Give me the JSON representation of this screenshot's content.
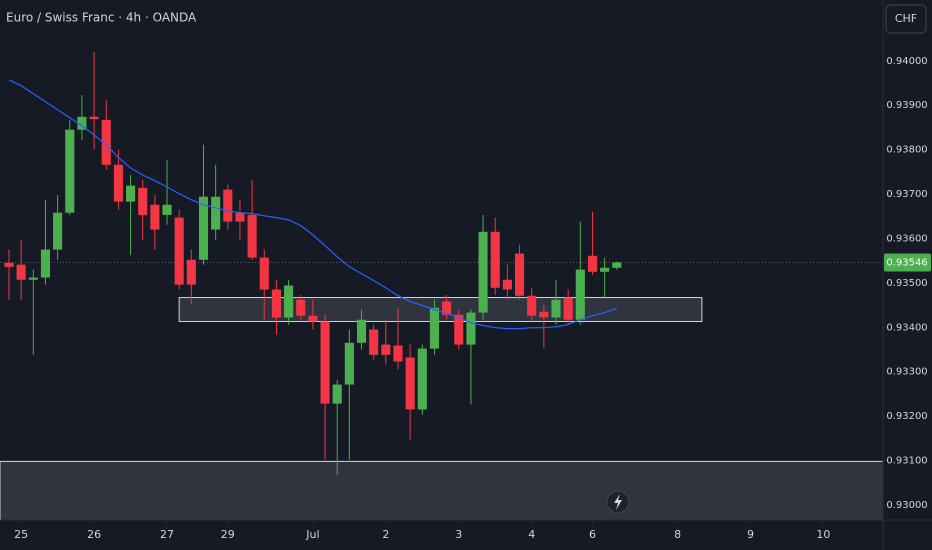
{
  "chart_data": {
    "type": "candlestick",
    "title": "Euro / Swiss Franc · 4h · OANDA",
    "currency_button": "CHF",
    "x": [
      0,
      1,
      2,
      3,
      4,
      5,
      6,
      7,
      8,
      9,
      10,
      11,
      12,
      13,
      14,
      15,
      16,
      17,
      18,
      19,
      20,
      21,
      22,
      23,
      24,
      25,
      26,
      27,
      28,
      29,
      30,
      31,
      32,
      33,
      34,
      35,
      36,
      37,
      38,
      39,
      40,
      41,
      42,
      43,
      44,
      45,
      46,
      47,
      48,
      49,
      50
    ],
    "open": [
      0.93545,
      0.93541,
      0.93507,
      0.93512,
      0.93575,
      0.93658,
      0.93845,
      0.93874,
      0.93867,
      0.93766,
      0.93683,
      0.93714,
      0.93676,
      0.93653,
      0.93647,
      0.93552,
      0.93552,
      0.9362,
      0.9371,
      0.93658,
      0.93653,
      0.93557,
      0.93485,
      0.93422,
      0.93462,
      0.93426,
      0.93413,
      0.93228,
      0.93271,
      0.93365,
      0.93395,
      0.93361,
      0.93359,
      0.93332,
      0.93215,
      0.93352,
      0.93458,
      0.93428,
      0.93361,
      0.93433,
      0.93615,
      0.93507,
      0.93566,
      0.93471,
      0.93435,
      0.93422,
      0.93467,
      0.93417,
      0.93561,
      0.93525,
      0.93534
    ],
    "high": [
      0.93575,
      0.93597,
      0.9353,
      0.93687,
      0.93698,
      0.93867,
      0.93923,
      0.9402,
      0.93912,
      0.938,
      0.93743,
      0.93732,
      0.93698,
      0.93777,
      0.93665,
      0.93575,
      0.93811,
      0.93766,
      0.93721,
      0.93687,
      0.93732,
      0.93575,
      0.93507,
      0.93507,
      0.93473,
      0.93462,
      0.93428,
      0.93282,
      0.93395,
      0.9344,
      0.93406,
      0.93417,
      0.93444,
      0.93361,
      0.93361,
      0.93462,
      0.93473,
      0.9344,
      0.9344,
      0.93653,
      0.93647,
      0.93541,
      0.93586,
      0.93489,
      0.93451,
      0.93507,
      0.93485,
      0.93638,
      0.9366,
      0.93557,
      0.93548
    ],
    "low": [
      0.93462,
      0.93462,
      0.93338,
      0.93496,
      0.93552,
      0.93653,
      0.93822,
      0.938,
      0.93755,
      0.93665,
      0.93563,
      0.93597,
      0.93575,
      0.93631,
      0.93485,
      0.93451,
      0.93541,
      0.93597,
      0.9362,
      0.93597,
      0.93552,
      0.93417,
      0.93383,
      0.93406,
      0.93417,
      0.93395,
      0.93102,
      0.93068,
      0.93102,
      0.9335,
      0.93327,
      0.93316,
      0.93305,
      0.93147,
      0.93203,
      0.93338,
      0.93417,
      0.9335,
      0.93226,
      0.93417,
      0.93473,
      0.93462,
      0.93462,
      0.93413,
      0.93354,
      0.93406,
      0.93406,
      0.93406,
      0.93518,
      0.93467,
      0.9353
    ],
    "close": [
      0.93536,
      0.93507,
      0.93512,
      0.93575,
      0.93658,
      0.93845,
      0.93874,
      0.93869,
      0.93766,
      0.93683,
      0.93719,
      0.93653,
      0.9362,
      0.93676,
      0.93496,
      0.93496,
      0.93694,
      0.93694,
      0.93638,
      0.93638,
      0.93557,
      0.93485,
      0.93422,
      0.93494,
      0.93426,
      0.93413,
      0.93228,
      0.93271,
      0.93365,
      0.93417,
      0.93338,
      0.93338,
      0.93323,
      0.93215,
      0.93352,
      0.93444,
      0.93428,
      0.93361,
      0.93433,
      0.93615,
      0.93489,
      0.93485,
      0.93471,
      0.93426,
      0.93422,
      0.93462,
      0.93417,
      0.9353,
      0.93525,
      0.93534,
      0.93546
    ],
    "ma": {
      "color": "#2962ff",
      "values": [
        0.93957,
        0.93944,
        0.93926,
        0.93908,
        0.9389,
        0.93872,
        0.93854,
        0.93833,
        0.93811,
        0.93782,
        0.93759,
        0.93743,
        0.9373,
        0.93716,
        0.93701,
        0.93687,
        0.93676,
        0.93669,
        0.93662,
        0.93658,
        0.93656,
        0.93651,
        0.93647,
        0.93642,
        0.93629,
        0.93608,
        0.93584,
        0.93559,
        0.93536,
        0.93521,
        0.93505,
        0.93489,
        0.93471,
        0.93458,
        0.93449,
        0.9344,
        0.93431,
        0.93422,
        0.9341,
        0.93404,
        0.93399,
        0.93397,
        0.93397,
        0.93399,
        0.93399,
        0.93401,
        0.93406,
        0.93417,
        0.93426,
        0.93433,
        0.93442
      ]
    },
    "up_color": "#4caf50",
    "down_color": "#f23645",
    "zones": [
      {
        "x": [
          14,
          57
        ],
        "y": [
          0.93413,
          0.93467
        ]
      },
      {
        "x": [
          -0.74,
          71.9
        ],
        "y": [
          0.92966,
          0.93098
        ]
      }
    ],
    "last_price": {
      "value": 0.93546,
      "label": "0.93546"
    },
    "xlim": [
      -0.74,
      71.9
    ],
    "xticks": [
      {
        "value": 1,
        "label": "25"
      },
      {
        "value": 7,
        "label": "26"
      },
      {
        "value": 13,
        "label": "27"
      },
      {
        "value": 18,
        "label": "29"
      },
      {
        "value": 25,
        "label": "Jul"
      },
      {
        "value": 31,
        "label": "2"
      },
      {
        "value": 37,
        "label": "3"
      },
      {
        "value": 43,
        "label": "4"
      },
      {
        "value": 48,
        "label": "6"
      },
      {
        "value": 55,
        "label": "8"
      },
      {
        "value": 61,
        "label": "9"
      },
      {
        "value": 67,
        "label": "10"
      }
    ],
    "ylim": [
      0.92966,
      0.94137
    ],
    "yticks": [
      {
        "value": 0.93,
        "label": "0.93000"
      },
      {
        "value": 0.931,
        "label": "0.93100"
      },
      {
        "value": 0.932,
        "label": "0.93200"
      },
      {
        "value": 0.933,
        "label": "0.93300"
      },
      {
        "value": 0.934,
        "label": "0.93400"
      },
      {
        "value": 0.935,
        "label": "0.93500"
      },
      {
        "value": 0.936,
        "label": "0.93600"
      },
      {
        "value": 0.937,
        "label": "0.93700"
      },
      {
        "value": 0.938,
        "label": "0.93800"
      },
      {
        "value": 0.939,
        "label": "0.93900"
      },
      {
        "value": 0.94,
        "label": "0.94000"
      }
    ],
    "grid": false
  }
}
